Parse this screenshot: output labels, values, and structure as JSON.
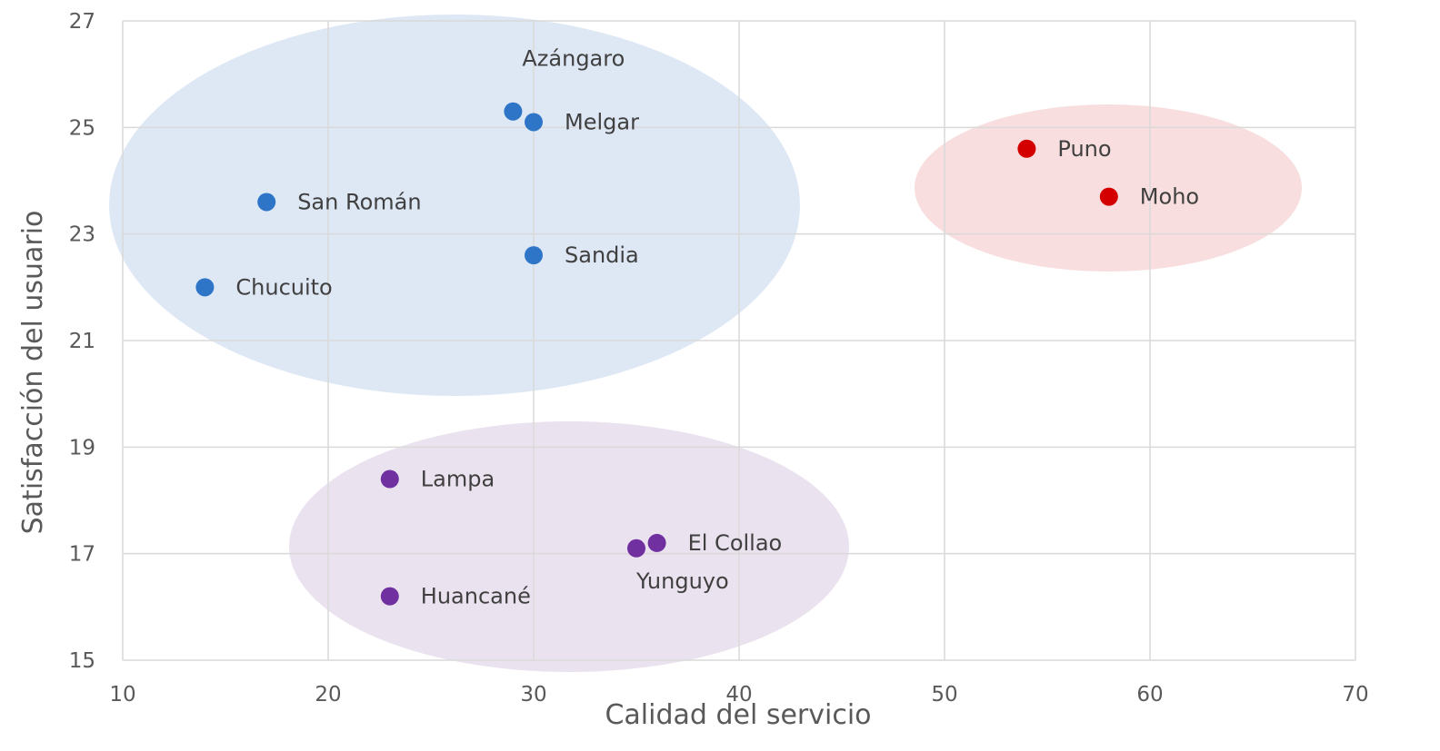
{
  "chart_data": {
    "type": "scatter",
    "xlabel": "Calidad del servicio",
    "ylabel": "Satisfacción del usuario",
    "xlim": [
      10,
      70
    ],
    "ylim": [
      15,
      27
    ],
    "xticks": [
      10,
      20,
      30,
      40,
      50,
      60,
      70
    ],
    "yticks": [
      15,
      17,
      19,
      21,
      23,
      25,
      27
    ],
    "grid": true,
    "legend": "none",
    "groups": [
      {
        "color": "#2E75C8",
        "fill": "#DEE8F5",
        "points": [
          {
            "label": "Azángaro",
            "x": 29,
            "y": 25.3
          },
          {
            "label": "Melgar",
            "x": 30,
            "y": 25.1
          },
          {
            "label": "San Román",
            "x": 17,
            "y": 23.6
          },
          {
            "label": "Sandia",
            "x": 30,
            "y": 22.6
          },
          {
            "label": "Chucuito",
            "x": 14,
            "y": 22.0
          }
        ]
      },
      {
        "color": "#D40000",
        "fill": "#F8DEDE",
        "points": [
          {
            "label": "Puno",
            "x": 54,
            "y": 24.6
          },
          {
            "label": "Moho",
            "x": 58,
            "y": 23.7
          }
        ]
      },
      {
        "color": "#7030A0",
        "fill": "#EAE2EF",
        "points": [
          {
            "label": "Lampa",
            "x": 23,
            "y": 18.4
          },
          {
            "label": "El Collao",
            "x": 36,
            "y": 17.2
          },
          {
            "label": "Yunguyo",
            "x": 35,
            "y": 17.1
          },
          {
            "label": "Huancané",
            "x": 23,
            "y": 16.2
          }
        ]
      }
    ]
  }
}
